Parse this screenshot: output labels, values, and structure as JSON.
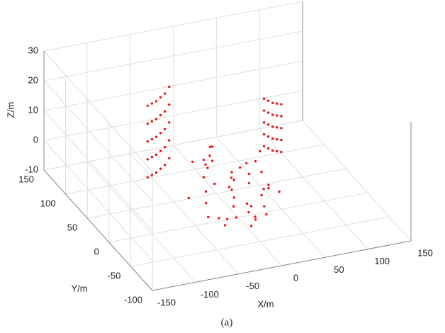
{
  "chart_data": {
    "type": "scatter3d",
    "xlabel": "X/m",
    "ylabel": "Y/m",
    "zlabel": "Z/m",
    "caption": "(a)",
    "xlim": [
      -150,
      150
    ],
    "ylim": [
      -100,
      150
    ],
    "zlim": [
      -10,
      30
    ],
    "xticks": [
      -150,
      -100,
      -50,
      0,
      50,
      100,
      150
    ],
    "yticks": [
      -100,
      -50,
      0,
      50,
      100,
      150
    ],
    "zticks": [
      -10,
      0,
      10,
      20,
      30
    ],
    "grid": true,
    "series": [
      {
        "color": "#ee1111",
        "x": [
          -75,
          -70,
          -65,
          -60,
          -55,
          -50,
          -75,
          -70,
          -65,
          -60,
          -55,
          -50,
          -75,
          -70,
          -65,
          -60,
          -55,
          -50,
          -75,
          -70,
          -65,
          -60,
          -55,
          -50,
          -75,
          -70,
          -65,
          -60,
          -55,
          -50,
          65,
          70,
          75,
          80,
          85,
          65,
          70,
          75,
          80,
          85,
          65,
          70,
          75,
          80,
          85,
          65,
          70,
          75,
          80,
          85,
          65,
          70,
          75,
          80,
          85,
          -40,
          -35,
          -30,
          -25,
          -20,
          -15,
          -10,
          -5,
          0,
          5,
          10,
          15,
          20,
          25,
          30,
          35,
          40,
          -38,
          -28,
          -18,
          -8,
          2,
          12,
          22,
          32,
          -33,
          -23,
          -13,
          -3,
          7,
          17,
          27,
          37,
          -45,
          45,
          -10,
          10,
          0,
          -20,
          20,
          -30,
          30,
          -5,
          5,
          15
        ],
        "y": [
          60,
          60,
          60,
          60,
          60,
          60,
          60,
          60,
          60,
          60,
          60,
          60,
          60,
          60,
          60,
          60,
          60,
          60,
          60,
          60,
          60,
          60,
          60,
          60,
          60,
          60,
          60,
          60,
          60,
          60,
          70,
          70,
          70,
          70,
          70,
          70,
          70,
          70,
          70,
          70,
          70,
          70,
          70,
          70,
          70,
          70,
          70,
          70,
          70,
          70,
          70,
          70,
          70,
          70,
          70,
          -10,
          5,
          20,
          -5,
          15,
          30,
          -15,
          0,
          10,
          25,
          -20,
          5,
          15,
          -10,
          20,
          0,
          10,
          30,
          -25,
          35,
          -5,
          20,
          -15,
          25,
          5,
          10,
          -20,
          40,
          15,
          -10,
          30,
          0,
          20,
          25,
          -5,
          45,
          35,
          -30,
          40,
          -25,
          15,
          10,
          50,
          -10,
          0
        ],
        "z": [
          22,
          22.5,
          23,
          24,
          25,
          27,
          16,
          16.5,
          17,
          18,
          19,
          21,
          10,
          10.5,
          11,
          12,
          13,
          15,
          4,
          4.5,
          5,
          6,
          7,
          9,
          -2,
          -1.5,
          -1,
          0,
          1,
          3,
          15,
          14,
          13,
          12.5,
          12,
          11,
          10,
          9,
          8.5,
          8,
          7,
          6,
          5,
          4.5,
          4,
          3,
          2,
          1,
          0.5,
          0,
          -1,
          -2,
          -3,
          -3.5,
          -4,
          -6,
          -4,
          2,
          -8,
          0,
          5,
          -7,
          -3,
          1,
          -5,
          -8,
          3,
          -2,
          -6,
          4,
          -1,
          -4,
          6,
          -7,
          2,
          -5,
          0,
          -8,
          3,
          -3,
          8,
          -6,
          5,
          -2,
          -7,
          1,
          -4,
          0,
          -5,
          -3,
          7,
          -1,
          -8,
          4,
          -6,
          -2,
          9,
          6,
          -4,
          -7
        ]
      }
    ]
  }
}
